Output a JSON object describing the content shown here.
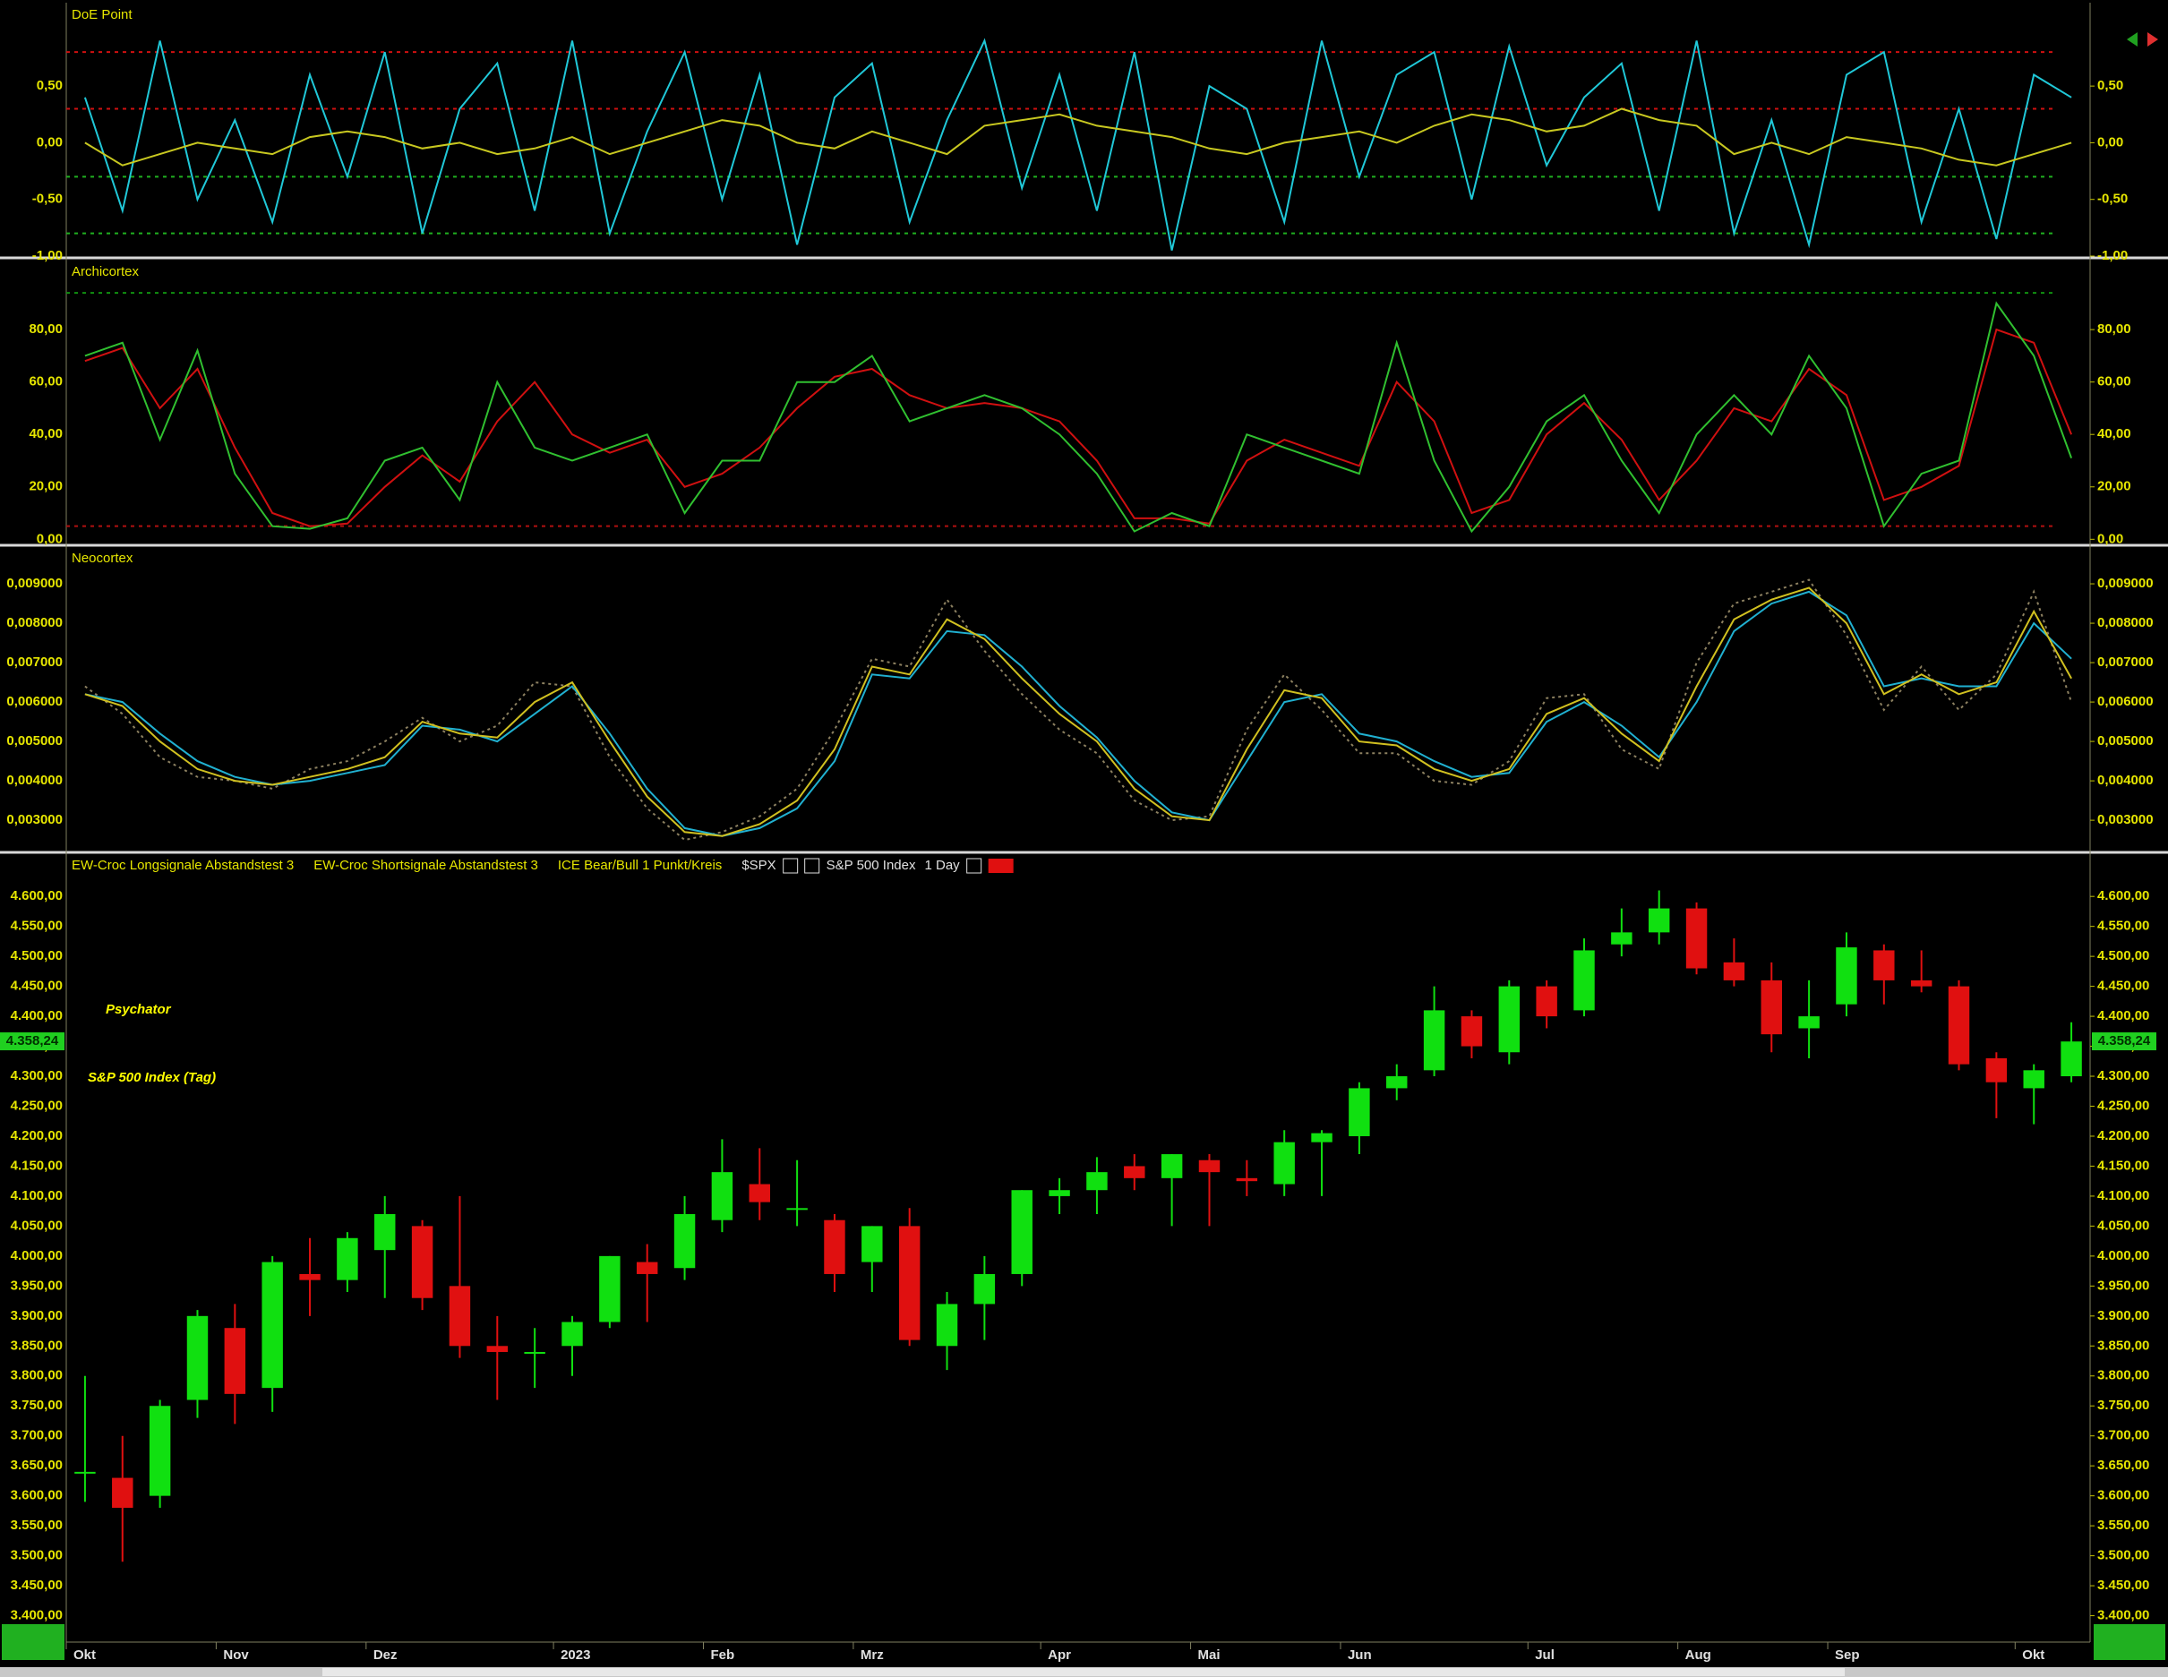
{
  "chart_data": [
    {
      "type": "line",
      "title": "DoE Point",
      "ylim": [
        -1.0,
        1.22
      ],
      "yticks": [
        {
          "value": 0.5,
          "label": "0,50"
        },
        {
          "value": 0,
          "label": "0,00"
        },
        {
          "value": -0.5,
          "label": "-0,50"
        },
        {
          "value": -1.0,
          "label": "-1,00"
        }
      ],
      "hlines": [
        {
          "value": 0.8,
          "color": "#d01010"
        },
        {
          "value": 0.3,
          "color": "#d01010"
        },
        {
          "value": -0.3,
          "color": "#20b020"
        },
        {
          "value": -0.8,
          "color": "#20b020"
        }
      ],
      "series": [
        {
          "color": "#20c8d8",
          "values": [
            0.4,
            -0.6,
            0.9,
            -0.5,
            0.2,
            -0.7,
            0.6,
            -0.3,
            0.8,
            -0.8,
            0.3,
            0.7,
            -0.6,
            0.9,
            -0.8,
            0.1,
            0.8,
            -0.5,
            0.6,
            -0.9,
            0.4,
            0.7,
            -0.7,
            0.2,
            0.9,
            -0.4,
            0.6,
            -0.6,
            0.8,
            -0.95,
            0.5,
            0.3,
            -0.7,
            0.9,
            -0.3,
            0.6,
            0.8,
            -0.5,
            0.85,
            -0.2,
            0.4,
            0.7,
            -0.6,
            0.9,
            -0.8,
            0.2,
            -0.9,
            0.6,
            0.8,
            -0.7,
            0.3,
            -0.85,
            0.6,
            0.4
          ]
        },
        {
          "color": "#c8c820",
          "values": [
            0.0,
            -0.2,
            -0.1,
            0.0,
            -0.05,
            -0.1,
            0.05,
            0.1,
            0.05,
            -0.05,
            0.0,
            -0.1,
            -0.05,
            0.05,
            -0.1,
            0.0,
            0.1,
            0.2,
            0.15,
            0.0,
            -0.05,
            0.1,
            0.0,
            -0.1,
            0.15,
            0.2,
            0.25,
            0.15,
            0.1,
            0.05,
            -0.05,
            -0.1,
            0.0,
            0.05,
            0.1,
            0.0,
            0.15,
            0.25,
            0.2,
            0.1,
            0.15,
            0.3,
            0.2,
            0.15,
            -0.1,
            0.0,
            -0.1,
            0.05,
            0.0,
            -0.05,
            -0.15,
            -0.2,
            -0.1,
            0.0
          ]
        }
      ]
    },
    {
      "type": "line",
      "title": "Archicortex",
      "ylim": [
        -1.6,
        106
      ],
      "yticks": [
        {
          "value": 80,
          "label": "80,00"
        },
        {
          "value": 60,
          "label": "60,00"
        },
        {
          "value": 40,
          "label": "40,00"
        },
        {
          "value": 20,
          "label": "20,00"
        },
        {
          "value": 0,
          "label": "0,00"
        }
      ],
      "hlines": [
        {
          "value": 94,
          "color": "#109010"
        },
        {
          "value": 5,
          "color": "#b01010"
        }
      ],
      "series": [
        {
          "color": "#d01010",
          "values": [
            68,
            73,
            50,
            65,
            35,
            10,
            5,
            6,
            20,
            32,
            22,
            45,
            60,
            40,
            33,
            38,
            20,
            25,
            35,
            50,
            62,
            65,
            55,
            50,
            52,
            50,
            45,
            30,
            8,
            8,
            6,
            30,
            38,
            33,
            28,
            60,
            45,
            10,
            15,
            40,
            52,
            38,
            15,
            30,
            50,
            45,
            65,
            55,
            15,
            20,
            28,
            80,
            75,
            40
          ]
        },
        {
          "color": "#30c030",
          "values": [
            70,
            75,
            38,
            72,
            25,
            5,
            4,
            8,
            30,
            35,
            15,
            60,
            35,
            30,
            35,
            40,
            10,
            30,
            30,
            60,
            60,
            70,
            45,
            50,
            55,
            50,
            40,
            25,
            3,
            10,
            5,
            40,
            35,
            30,
            25,
            75,
            30,
            3,
            20,
            45,
            55,
            30,
            10,
            40,
            55,
            40,
            70,
            50,
            5,
            25,
            30,
            90,
            70,
            31
          ]
        }
      ]
    },
    {
      "type": "line",
      "title": "Neocortex",
      "ylim": [
        0.00223,
        0.00991
      ],
      "yticks": [
        {
          "value": 0.009,
          "label": "0,009000"
        },
        {
          "value": 0.008,
          "label": "0,008000"
        },
        {
          "value": 0.007,
          "label": "0,007000"
        },
        {
          "value": 0.006,
          "label": "0,006000"
        },
        {
          "value": 0.005,
          "label": "0,005000"
        },
        {
          "value": 0.004,
          "label": "0,004000"
        },
        {
          "value": 0.003,
          "label": "0,003000"
        }
      ],
      "series": [
        {
          "color": "#8c8060",
          "style": "dotted",
          "values": [
            0.0064,
            0.0057,
            0.0046,
            0.0041,
            0.004,
            0.0038,
            0.0043,
            0.0045,
            0.005,
            0.0056,
            0.005,
            0.0054,
            0.0065,
            0.0064,
            0.0046,
            0.0033,
            0.0025,
            0.0027,
            0.0031,
            0.0038,
            0.0053,
            0.0071,
            0.0069,
            0.0086,
            0.0073,
            0.0062,
            0.0053,
            0.0047,
            0.0035,
            0.003,
            0.0031,
            0.0053,
            0.0067,
            0.0058,
            0.0047,
            0.0047,
            0.004,
            0.0039,
            0.0045,
            0.0061,
            0.0062,
            0.0048,
            0.0043,
            0.007,
            0.0085,
            0.0088,
            0.0091,
            0.0077,
            0.0058,
            0.0069,
            0.0058,
            0.0067,
            0.0088,
            0.006
          ]
        },
        {
          "color": "#20b0d0",
          "values": [
            0.0062,
            0.006,
            0.0052,
            0.0045,
            0.0041,
            0.0039,
            0.004,
            0.0042,
            0.0044,
            0.0054,
            0.0053,
            0.005,
            0.0057,
            0.0064,
            0.0052,
            0.0038,
            0.0028,
            0.0026,
            0.0028,
            0.0033,
            0.0045,
            0.0067,
            0.0066,
            0.0078,
            0.0077,
            0.0069,
            0.0059,
            0.0051,
            0.004,
            0.0032,
            0.003,
            0.0045,
            0.006,
            0.0062,
            0.0052,
            0.005,
            0.0045,
            0.0041,
            0.0042,
            0.0055,
            0.006,
            0.0054,
            0.0046,
            0.006,
            0.0078,
            0.0085,
            0.0088,
            0.0082,
            0.0064,
            0.0066,
            0.0064,
            0.0064,
            0.008,
            0.0071
          ]
        },
        {
          "color": "#d0c020",
          "values": [
            0.0062,
            0.0059,
            0.005,
            0.0043,
            0.004,
            0.0039,
            0.0041,
            0.0043,
            0.0046,
            0.0055,
            0.0052,
            0.0051,
            0.006,
            0.0065,
            0.005,
            0.0036,
            0.0027,
            0.0026,
            0.0029,
            0.0035,
            0.0048,
            0.0069,
            0.0067,
            0.0081,
            0.0076,
            0.0066,
            0.0057,
            0.005,
            0.0038,
            0.0031,
            0.003,
            0.0048,
            0.0063,
            0.0061,
            0.005,
            0.0049,
            0.0043,
            0.004,
            0.0043,
            0.0057,
            0.0061,
            0.0052,
            0.0045,
            0.0064,
            0.0081,
            0.0086,
            0.0089,
            0.008,
            0.0062,
            0.0067,
            0.0062,
            0.0065,
            0.0083,
            0.0066
          ]
        }
      ]
    },
    {
      "type": "candlestick",
      "legend": [
        "EW-Croc Longsignale Abstandstest 3",
        "EW-Croc Shortsignale Abstandstest 3",
        "ICE Bear/Bull 1 Punkt/Kreis"
      ],
      "symbol": "$SPX",
      "instrument": "S&P 500 Index",
      "interval": "1 Day",
      "annotations": [
        "Psychator",
        "S&P 500 Index (Tag)"
      ],
      "ylim": [
        3356,
        4669
      ],
      "yticks": [
        {
          "value": 4600,
          "label": "4.600,00"
        },
        {
          "value": 4550,
          "label": "4.550,00"
        },
        {
          "value": 4500,
          "label": "4.500,00"
        },
        {
          "value": 4450,
          "label": "4.450,00"
        },
        {
          "value": 4400,
          "label": "4.400,00"
        },
        {
          "value": 4350,
          "label": "4.350,00"
        },
        {
          "value": 4300,
          "label": "4.300,00"
        },
        {
          "value": 4250,
          "label": "4.250,00"
        },
        {
          "value": 4200,
          "label": "4.200,00"
        },
        {
          "value": 4150,
          "label": "4.150,00"
        },
        {
          "value": 4100,
          "label": "4.100,00"
        },
        {
          "value": 4050,
          "label": "4.050,00"
        },
        {
          "value": 4000,
          "label": "4.000,00"
        },
        {
          "value": 3950,
          "label": "3.950,00"
        },
        {
          "value": 3900,
          "label": "3.900,00"
        },
        {
          "value": 3850,
          "label": "3.850,00"
        },
        {
          "value": 3800,
          "label": "3.800,00"
        },
        {
          "value": 3750,
          "label": "3.750,00"
        },
        {
          "value": 3700,
          "label": "3.700,00"
        },
        {
          "value": 3650,
          "label": "3.650,00"
        },
        {
          "value": 3600,
          "label": "3.600,00"
        },
        {
          "value": 3550,
          "label": "3.550,00"
        },
        {
          "value": 3500,
          "label": "3.500,00"
        },
        {
          "value": 3450,
          "label": "3.450,00"
        },
        {
          "value": 3400,
          "label": "3.400,00"
        }
      ],
      "last_price": {
        "value": 4358.24,
        "label": "4.358,24"
      },
      "up_color": "#10e010",
      "down_color": "#e01010",
      "categories": [
        "Okt",
        null,
        null,
        null,
        "Nov",
        null,
        null,
        null,
        "Dez",
        null,
        null,
        null,
        null,
        "2023",
        null,
        null,
        null,
        "Feb",
        null,
        null,
        null,
        "Mrz",
        null,
        null,
        null,
        null,
        "Apr",
        null,
        null,
        null,
        "Mai",
        null,
        null,
        null,
        "Jun",
        null,
        null,
        null,
        null,
        "Jul",
        null,
        null,
        null,
        "Aug",
        null,
        null,
        null,
        "Sep",
        null,
        null,
        null,
        null,
        "Okt",
        null
      ],
      "open": [
        3640,
        3630,
        3600,
        3760,
        3880,
        3780,
        3970,
        3960,
        4010,
        4050,
        3950,
        3850,
        3840,
        3850,
        3890,
        3990,
        3980,
        4060,
        4120,
        4080,
        4060,
        3990,
        4050,
        3850,
        3920,
        3970,
        4100,
        4110,
        4150,
        4130,
        4160,
        4130,
        4120,
        4190,
        4200,
        4280,
        4310,
        4400,
        4340,
        4450,
        4410,
        4520,
        4540,
        4580,
        4490,
        4460,
        4380,
        4420,
        4510,
        4460,
        4450,
        4330,
        4280,
        4300
      ],
      "high": [
        3800,
        3700,
        3760,
        3910,
        3920,
        4000,
        4030,
        4040,
        4100,
        4060,
        4100,
        3900,
        3880,
        3900,
        4000,
        4020,
        4100,
        4195,
        4180,
        4160,
        4070,
        4050,
        4080,
        3940,
        4000,
        4110,
        4130,
        4165,
        4170,
        4170,
        4170,
        4160,
        4210,
        4210,
        4290,
        4320,
        4450,
        4410,
        4460,
        4460,
        4530,
        4580,
        4610,
        4590,
        4530,
        4490,
        4460,
        4540,
        4520,
        4510,
        4460,
        4340,
        4320,
        4390
      ],
      "low": [
        3590,
        3490,
        3580,
        3730,
        3720,
        3740,
        3900,
        3940,
        3930,
        3910,
        3830,
        3760,
        3780,
        3800,
        3880,
        3890,
        3960,
        4040,
        4060,
        4050,
        3940,
        3940,
        3850,
        3810,
        3860,
        3950,
        4070,
        4070,
        4110,
        4050,
        4050,
        4100,
        4100,
        4100,
        4170,
        4260,
        4300,
        4330,
        4320,
        4380,
        4400,
        4500,
        4520,
        4470,
        4450,
        4340,
        4330,
        4400,
        4420,
        4440,
        4310,
        4230,
        4220,
        4290
      ],
      "close": [
        3640,
        3580,
        3750,
        3900,
        3770,
        3990,
        3960,
        4030,
        4070,
        3930,
        3850,
        3840,
        3840,
        3890,
        4000,
        3970,
        4070,
        4140,
        4090,
        4080,
        3970,
        4050,
        3860,
        3920,
        3970,
        4110,
        4110,
        4140,
        4130,
        4170,
        4140,
        4125,
        4190,
        4205,
        4280,
        4300,
        4410,
        4350,
        4450,
        4400,
        4510,
        4540,
        4580,
        4480,
        4460,
        4370,
        4400,
        4515,
        4460,
        4450,
        4320,
        4290,
        4310,
        4358
      ]
    }
  ]
}
